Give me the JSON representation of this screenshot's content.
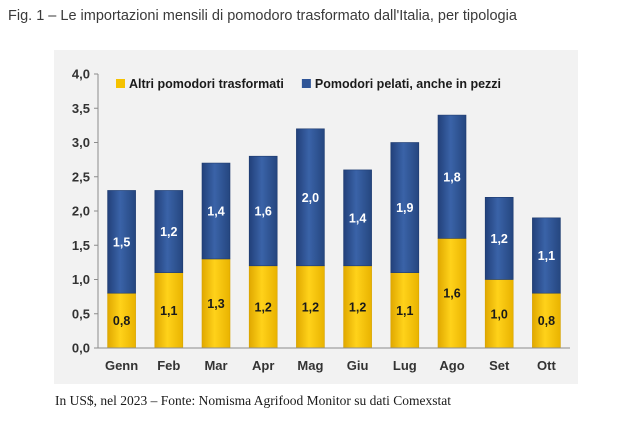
{
  "figure": {
    "title": "Fig. 1 – Le importazioni mensili di pomodoro trasformato dall'Italia, per tipologia",
    "source_note": "In US$, nel 2023 – Fonte: Nomisma Agrifood Monitor su dati Comexstat"
  },
  "chart_data": {
    "type": "bar",
    "stacked": true,
    "title": "",
    "xlabel": "",
    "ylabel": "",
    "ylim": [
      0,
      4.0
    ],
    "yticks": [
      "0,0",
      "0,5",
      "1,0",
      "1,5",
      "2,0",
      "2,5",
      "3,0",
      "3,5",
      "4,0"
    ],
    "grid": false,
    "legend_position": "top",
    "categories": [
      "Genn",
      "Feb",
      "Mar",
      "Apr",
      "Mag",
      "Giu",
      "Lug",
      "Ago",
      "Set",
      "Ott"
    ],
    "series": [
      {
        "name": "Altri pomodori trasformati",
        "color": "#f5c200",
        "values": [
          0.8,
          1.1,
          1.3,
          1.2,
          1.2,
          1.2,
          1.1,
          1.6,
          1.0,
          0.8
        ],
        "labels": [
          "0,8",
          "1,1",
          "1,3",
          "1,2",
          "1,2",
          "1,2",
          "1,1",
          "1,6",
          "1,0",
          "0,8"
        ]
      },
      {
        "name": "Pomodori pelati, anche in pezzi",
        "color": "#2f5597",
        "values": [
          1.5,
          1.2,
          1.4,
          1.6,
          2.0,
          1.4,
          1.9,
          1.8,
          1.2,
          1.1
        ],
        "labels": [
          "1,5",
          "1,2",
          "1,4",
          "1,6",
          "2,0",
          "1,4",
          "1,9",
          "1,8",
          "1,2",
          "1,1"
        ]
      }
    ]
  }
}
